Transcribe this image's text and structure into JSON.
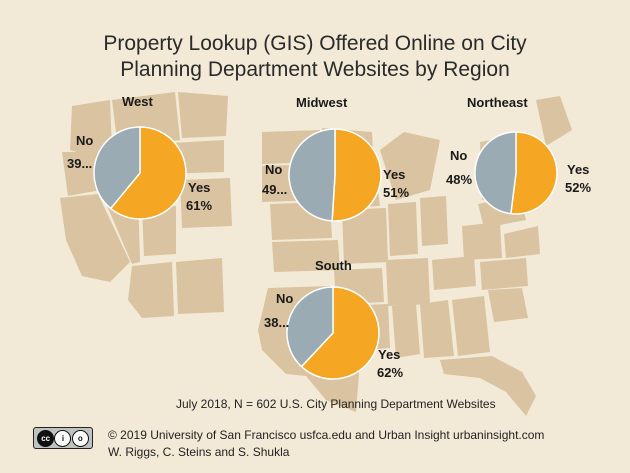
{
  "title_line1": "Property Lookup (GIS) Offered Online on City",
  "title_line2": "Planning Department Websites by Region",
  "note": "July 2018, N = 602 U.S. City Planning Department Websites",
  "credit_line1": "© 2019 University of San Francisco usfca.edu and Urban Insight urbaninsight.com",
  "credit_line2": "W. Riggs, C. Steins and S. Shukla",
  "license_badge": {
    "icon": "cc-by-sa-icon",
    "labels": [
      "cc",
      "i",
      "o"
    ]
  },
  "colors": {
    "yes": "#f5a623",
    "no": "#9aabb3",
    "map": "#d9c3a0",
    "background": "#f2ead7"
  },
  "chart_data": {
    "type": "pie",
    "title": "Property Lookup (GIS) Offered Online on City Planning Department Websites by Region",
    "charts": [
      {
        "region": "West",
        "slices": [
          {
            "label": "Yes",
            "value": 61,
            "text": "61%"
          },
          {
            "label": "No",
            "value": 39,
            "text": "39..."
          }
        ]
      },
      {
        "region": "Midwest",
        "slices": [
          {
            "label": "Yes",
            "value": 51,
            "text": "51%"
          },
          {
            "label": "No",
            "value": 49,
            "text": "49..."
          }
        ]
      },
      {
        "region": "Northeast",
        "slices": [
          {
            "label": "Yes",
            "value": 52,
            "text": "52%"
          },
          {
            "label": "No",
            "value": 48,
            "text": "48%"
          }
        ]
      },
      {
        "region": "South",
        "slices": [
          {
            "label": "Yes",
            "value": 62,
            "text": "62%"
          },
          {
            "label": "No",
            "value": 38,
            "text": "38..."
          }
        ]
      }
    ]
  }
}
